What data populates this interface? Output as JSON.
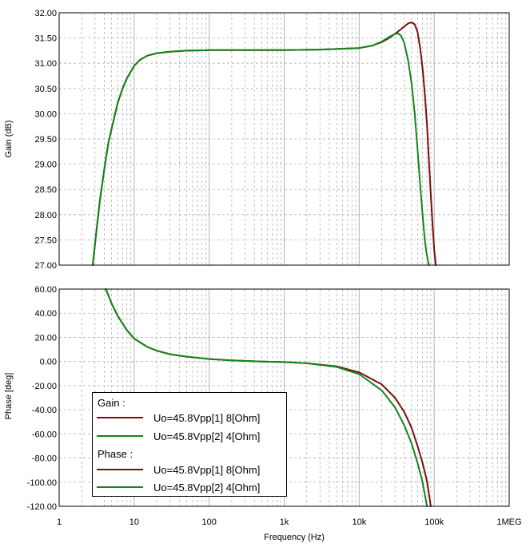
{
  "colors": {
    "series_1": "#7a0f0f",
    "series_2": "#13861a",
    "grid": "#b4b4b4",
    "axis": "#000000",
    "background": "#ffffff"
  },
  "legend": {
    "gain_heading": "Gain :",
    "phase_heading": "Phase :",
    "gain_entries": [
      "Uo=45.8Vpp[1]  8[Ohm]",
      "Uo=45.8Vpp[2]  4[Ohm]"
    ],
    "phase_entries": [
      "Uo=45.8Vpp[1]  8[Ohm]",
      "Uo=45.8Vpp[2]  4[Ohm]"
    ]
  },
  "chart_data": [
    {
      "type": "line",
      "title": "",
      "xlabel": "",
      "ylabel": "Gain (dB)",
      "xscale": "log",
      "xlim": [
        1,
        1000000
      ],
      "ylim": [
        27,
        32
      ],
      "yticks": [
        "27.00",
        "27.50",
        "28.00",
        "28.50",
        "29.00",
        "29.50",
        "30.00",
        "30.50",
        "31.00",
        "31.50",
        "32.00"
      ],
      "grid": true,
      "series": [
        {
          "name": "Uo=45.8Vpp[1]  8[Ohm]",
          "color": "#7a0f0f",
          "x": [
            2.8,
            3.1,
            3.5,
            4,
            4.5,
            5,
            6,
            7,
            8,
            10,
            12,
            15,
            20,
            30,
            50,
            100,
            300,
            1000,
            3000,
            10000,
            15000,
            20000,
            25000,
            30000,
            35000,
            40000,
            45000,
            50000,
            55000,
            60000,
            65000,
            70000,
            75000,
            80000,
            85000,
            90000,
            95000,
            100000,
            105000
          ],
          "y": [
            27.0,
            27.6,
            28.3,
            28.9,
            29.4,
            29.7,
            30.2,
            30.5,
            30.7,
            30.95,
            31.07,
            31.15,
            31.2,
            31.23,
            31.25,
            31.26,
            31.26,
            31.26,
            31.27,
            31.3,
            31.35,
            31.42,
            31.5,
            31.58,
            31.66,
            31.73,
            31.79,
            31.81,
            31.77,
            31.62,
            31.3,
            30.9,
            30.4,
            29.8,
            29.1,
            28.4,
            27.8,
            27.3,
            27.0
          ]
        },
        {
          "name": "Uo=45.8Vpp[2]  4[Ohm]",
          "color": "#13861a",
          "x": [
            2.8,
            3.1,
            3.5,
            4,
            4.5,
            5,
            6,
            7,
            8,
            10,
            12,
            15,
            20,
            30,
            50,
            100,
            300,
            1000,
            3000,
            10000,
            15000,
            20000,
            25000,
            30000,
            33000,
            36000,
            40000,
            45000,
            50000,
            55000,
            60000,
            65000,
            70000,
            75000,
            78000,
            82000,
            85000
          ],
          "y": [
            27.0,
            27.6,
            28.3,
            28.9,
            29.4,
            29.7,
            30.2,
            30.5,
            30.7,
            30.95,
            31.07,
            31.15,
            31.2,
            31.23,
            31.25,
            31.26,
            31.26,
            31.26,
            31.27,
            31.3,
            31.35,
            31.43,
            31.52,
            31.58,
            31.59,
            31.55,
            31.4,
            31.05,
            30.6,
            30.0,
            29.3,
            28.6,
            28.0,
            27.5,
            27.3,
            27.1,
            27.0
          ]
        }
      ]
    },
    {
      "type": "line",
      "title": "",
      "xlabel": "Frequency (Hz)",
      "ylabel": "Phase [deg]",
      "xscale": "log",
      "xlim": [
        1,
        1000000
      ],
      "ylim": [
        -120,
        60
      ],
      "xticks": [
        "1",
        "10",
        "100",
        "1k",
        "10k",
        "100k",
        "1MEG"
      ],
      "yticks": [
        "-120.00",
        "-100.00",
        "-80.00",
        "-60.00",
        "-40.00",
        "-20.00",
        "0.00",
        "20.00",
        "40.00",
        "60.00"
      ],
      "grid": true,
      "series": [
        {
          "name": "Uo=45.8Vpp[1]  8[Ohm]",
          "color": "#7a0f0f",
          "x": [
            4.2,
            5,
            6,
            8,
            10,
            15,
            20,
            30,
            50,
            100,
            200,
            500,
            1000,
            2000,
            5000,
            10000,
            20000,
            30000,
            40000,
            50000,
            60000,
            70000,
            80000,
            90000
          ],
          "y": [
            60,
            48,
            38,
            26,
            19,
            12,
            9,
            6,
            4,
            2,
            1,
            0,
            -0.5,
            -1.5,
            -4,
            -9,
            -19,
            -30,
            -42,
            -55,
            -70,
            -84,
            -99,
            -120
          ]
        },
        {
          "name": "Uo=45.8Vpp[2]  4[Ohm]",
          "color": "#13861a",
          "x": [
            4.2,
            5,
            6,
            8,
            10,
            15,
            20,
            30,
            50,
            100,
            200,
            500,
            1000,
            2000,
            5000,
            10000,
            20000,
            30000,
            40000,
            50000,
            60000,
            70000,
            80000
          ],
          "y": [
            60,
            48,
            38,
            26,
            19,
            12,
            9,
            6,
            4,
            2,
            1,
            0,
            -0.5,
            -1.5,
            -4.5,
            -10.5,
            -24,
            -38,
            -53,
            -68,
            -84,
            -100,
            -120
          ]
        }
      ]
    }
  ]
}
